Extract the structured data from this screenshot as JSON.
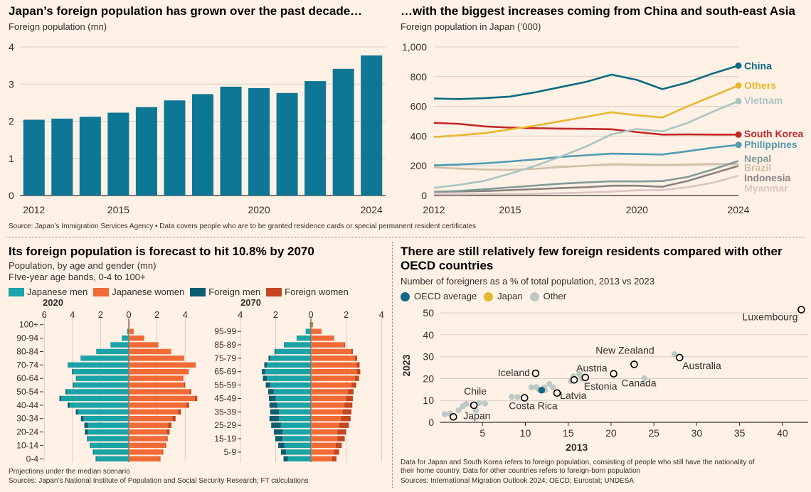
{
  "colors": {
    "bar": "#0d7795",
    "jp_men": "#1aa3a6",
    "jp_women": "#f26a36",
    "fo_men": "#0d5c70",
    "fo_women": "#c2461f",
    "oecd": "#0d6a80",
    "japan": "#e8b730",
    "other": "#bdc9c6",
    "grid": "#d9cec4",
    "axis": "#33302e"
  },
  "chart_data": [
    {
      "id": "bars",
      "type": "bar",
      "title": "Japan’s foreign population has grown over the past decade…",
      "ylabel": "Foreign population (mn)",
      "categories": [
        2012,
        2013,
        2014,
        2015,
        2016,
        2017,
        2018,
        2019,
        2020,
        2021,
        2022,
        2023,
        2024
      ],
      "values": [
        2.04,
        2.07,
        2.12,
        2.23,
        2.38,
        2.56,
        2.73,
        2.93,
        2.89,
        2.76,
        3.08,
        3.41,
        3.77
      ],
      "yticks": [
        "0",
        "1",
        "2",
        "3",
        "4"
      ],
      "xticks": [
        "2012",
        "2015",
        "2020",
        "2024"
      ],
      "ylim": [
        0,
        4
      ]
    },
    {
      "id": "lines",
      "type": "line",
      "title": "…with the biggest increases coming from China and south-east Asia",
      "ylabel": "Foreign population in Japan (’000)",
      "x": [
        2012,
        2013,
        2014,
        2015,
        2016,
        2017,
        2018,
        2019,
        2020,
        2021,
        2022,
        2023,
        2024
      ],
      "yticks": [
        "0",
        "200",
        "400",
        "600",
        "800",
        "1,000"
      ],
      "xticks": [
        "2012",
        "2015",
        "2020",
        "2024"
      ],
      "ylim": [
        0,
        1000
      ],
      "series": [
        {
          "name": "China",
          "color": "#0d6a80",
          "bold": true,
          "values": [
            653,
            649,
            655,
            666,
            695,
            730,
            765,
            814,
            778,
            716,
            761,
            822,
            874
          ]
        },
        {
          "name": "Others",
          "color": "#e8b730",
          "bold": true,
          "values": [
            394,
            405,
            420,
            445,
            470,
            500,
            530,
            560,
            540,
            525,
            600,
            670,
            740
          ]
        },
        {
          "name": "Vietnam",
          "color": "#a9c5c2",
          "bold": true,
          "values": [
            52,
            72,
            99,
            147,
            200,
            262,
            330,
            412,
            448,
            432,
            489,
            565,
            635
          ]
        },
        {
          "name": "South Korea",
          "color": "#c3272c",
          "bold": true,
          "values": [
            489,
            482,
            465,
            457,
            453,
            450,
            449,
            446,
            427,
            410,
            411,
            410,
            410
          ]
        },
        {
          "name": "Philippines",
          "color": "#4f9bb0",
          "bold": true,
          "values": [
            203,
            209,
            217,
            229,
            243,
            260,
            271,
            282,
            279,
            276,
            298,
            322,
            341
          ]
        },
        {
          "name": "Nepal",
          "color": "#7f9a98",
          "bold": true,
          "values": [
            24,
            31,
            42,
            55,
            67,
            80,
            88,
            96,
            95,
            97,
            125,
            176,
            233
          ]
        },
        {
          "name": "Brazil",
          "color": "#d2bea8",
          "bold": false,
          "values": [
            190,
            181,
            175,
            173,
            180,
            191,
            201,
            211,
            209,
            205,
            209,
            212,
            212
          ]
        },
        {
          "name": "Indonesia",
          "color": "#888380",
          "bold": false,
          "values": [
            25,
            27,
            30,
            36,
            43,
            50,
            56,
            66,
            66,
            59,
            98,
            149,
            199
          ]
        },
        {
          "name": "Myanmar",
          "color": "#dcc3c3",
          "bold": false,
          "values": [
            8,
            8,
            9,
            10,
            12,
            16,
            20,
            26,
            35,
            37,
            56,
            86,
            134
          ]
        }
      ]
    },
    {
      "id": "pyramids",
      "type": "bar",
      "title": "Its foreign population is forecast to hit 10.8% by 2070",
      "subtitle1": "Population, by age and gender (mn)",
      "subtitle2": "FIve-year age bands, 0-4 to 100+",
      "legend": [
        "Japanese men",
        "Japanese women",
        "Foreign men",
        "Foreign women"
      ],
      "years": [
        "2020",
        "2070"
      ],
      "ticks": [
        "6",
        "4",
        "2",
        "0",
        "2",
        "4"
      ],
      "ticks_2070": [
        "4",
        "2",
        "0",
        "2",
        "4"
      ],
      "labels_2020": [
        "100+",
        "90-94",
        "80-84",
        "70-74",
        "60-64",
        "50-54",
        "40-44",
        "30-34",
        "20-24",
        "10-14",
        "0-4"
      ],
      "labels_2070": [
        "95-99",
        "85-89",
        "75-79",
        "65-69",
        "55-59",
        "45-49",
        "35-39",
        "25-29",
        "15-19",
        "5-9"
      ],
      "bands": [
        "0-4",
        "5-9",
        "10-14",
        "15-19",
        "20-24",
        "25-29",
        "30-34",
        "35-39",
        "40-44",
        "45-49",
        "50-54",
        "55-59",
        "60-64",
        "65-69",
        "70-74",
        "75-79",
        "80-84",
        "85-89",
        "90-94",
        "95-99",
        "100+"
      ],
      "y2020": {
        "jp_men": [
          2.3,
          2.5,
          2.7,
          2.9,
          2.9,
          2.9,
          3.2,
          3.6,
          4.2,
          4.8,
          4.4,
          3.9,
          3.7,
          4.0,
          4.3,
          3.4,
          2.3,
          1.3,
          0.5,
          0.12,
          0.01
        ],
        "fo_men": [
          0.05,
          0.05,
          0.05,
          0.06,
          0.22,
          0.25,
          0.2,
          0.16,
          0.14,
          0.12,
          0.09,
          0.07,
          0.05,
          0.04,
          0.03,
          0.02,
          0.01,
          0,
          0,
          0,
          0
        ],
        "jp_women": [
          2.2,
          2.4,
          2.6,
          2.7,
          2.7,
          2.8,
          3.1,
          3.5,
          4.1,
          4.7,
          4.3,
          3.9,
          3.8,
          4.2,
          4.7,
          3.9,
          3.0,
          2.1,
          1.1,
          0.35,
          0.07
        ],
        "fo_women": [
          0.05,
          0.05,
          0.05,
          0.06,
          0.2,
          0.23,
          0.22,
          0.2,
          0.18,
          0.16,
          0.13,
          0.1,
          0.07,
          0.05,
          0.04,
          0.03,
          0.01,
          0,
          0,
          0,
          0
        ]
      },
      "y2070": {
        "jp_men": [
          1.3,
          1.4,
          1.5,
          1.6,
          1.6,
          1.7,
          1.8,
          1.8,
          1.9,
          2.0,
          2.1,
          2.3,
          2.5,
          2.6,
          2.5,
          2.3,
          2.0,
          1.5,
          0.8,
          0.3,
          0.06
        ],
        "fo_men": [
          0.25,
          0.3,
          0.35,
          0.42,
          0.5,
          0.55,
          0.55,
          0.5,
          0.45,
          0.38,
          0.32,
          0.26,
          0.22,
          0.18,
          0.14,
          0.1,
          0.06,
          0.03,
          0.01,
          0,
          0
        ],
        "jp_women": [
          1.2,
          1.3,
          1.4,
          1.5,
          1.5,
          1.6,
          1.7,
          1.8,
          1.9,
          2.0,
          2.1,
          2.3,
          2.5,
          2.6,
          2.6,
          2.5,
          2.3,
          1.9,
          1.3,
          0.6,
          0.12
        ],
        "fo_women": [
          0.25,
          0.3,
          0.35,
          0.42,
          0.5,
          0.55,
          0.55,
          0.5,
          0.45,
          0.38,
          0.32,
          0.27,
          0.23,
          0.2,
          0.16,
          0.12,
          0.08,
          0.04,
          0.02,
          0,
          0
        ]
      }
    },
    {
      "id": "scatter",
      "type": "scatter",
      "title1": "There are still relatively few foreign residents compared with other",
      "title2": "OECD countries",
      "subtitle": "Number of foreigners as a % of total population, 2013 vs 2023",
      "legend": [
        "OECD average",
        "Japan",
        "Other"
      ],
      "xlabel": "2013",
      "ylabel": "2023",
      "xticks": [
        "5",
        "10",
        "15",
        "20",
        "25",
        "30",
        "35",
        "40"
      ],
      "yticks": [
        "0",
        "10",
        "20",
        "30",
        "40",
        "50"
      ],
      "xlim": [
        0,
        43
      ],
      "ylim": [
        0,
        52
      ],
      "labelled": [
        {
          "name": "Luxembourg",
          "x": 42.2,
          "y": 51.5
        },
        {
          "name": "New Zealand",
          "x": 22.7,
          "y": 26.5
        },
        {
          "name": "Australia",
          "x": 28.0,
          "y": 29.6
        },
        {
          "name": "Iceland",
          "x": 11.2,
          "y": 22.4
        },
        {
          "name": "Austria",
          "x": 15.7,
          "y": 19.4
        },
        {
          "name": "Estonia",
          "x": 17.0,
          "y": 20.5
        },
        {
          "name": "Canada",
          "x": 20.3,
          "y": 22.2
        },
        {
          "name": "Latvia",
          "x": 13.7,
          "y": 13.4
        },
        {
          "name": "Costa Rica",
          "x": 9.9,
          "y": 11.2
        },
        {
          "name": "Chile",
          "x": 4.0,
          "y": 7.8
        },
        {
          "name": "Japan",
          "x": 1.6,
          "y": 2.5
        }
      ],
      "oecd": {
        "x": 11.9,
        "y": 14.7
      },
      "others": [
        [
          0.6,
          3.7
        ],
        [
          1.2,
          4.0
        ],
        [
          2.2,
          5.5
        ],
        [
          2.7,
          7.3
        ],
        [
          3.1,
          8.4
        ],
        [
          3.8,
          7.8
        ],
        [
          4.2,
          5.3
        ],
        [
          4.6,
          8.8
        ],
        [
          5.3,
          8.6
        ],
        [
          8.4,
          11.7
        ],
        [
          9.1,
          11.6
        ],
        [
          10.7,
          16.0
        ],
        [
          11.3,
          16.1
        ],
        [
          11.6,
          14.8
        ],
        [
          12.2,
          15.9
        ],
        [
          12.3,
          14.7
        ],
        [
          12.8,
          17.5
        ],
        [
          13.2,
          16.0
        ],
        [
          15.3,
          18.8
        ],
        [
          15.6,
          21.0
        ],
        [
          16.3,
          22.1
        ],
        [
          16.6,
          19.8
        ],
        [
          23.9,
          20.1
        ],
        [
          27.4,
          31.1
        ]
      ]
    }
  ],
  "sources": {
    "top": "Source: Japan’s Immigration Services Agency • Data covers people who are to be granted residence cards or special permanent resident certificates",
    "pyr_note": "Projections under the median scenario",
    "pyr_src": "Sources: Japan’s National Institute of Population and Social Security Research; FT calculations",
    "sc_note1": "Data for Japan and South Korea refers to foreign population, consisting of people who still have the nationality of",
    "sc_note2": "their home country. Data for other countries refers to foreign-born population",
    "sc_src": "Sources: International Migration Outlook 2024; OECD; Eurostat; UNDESA"
  }
}
